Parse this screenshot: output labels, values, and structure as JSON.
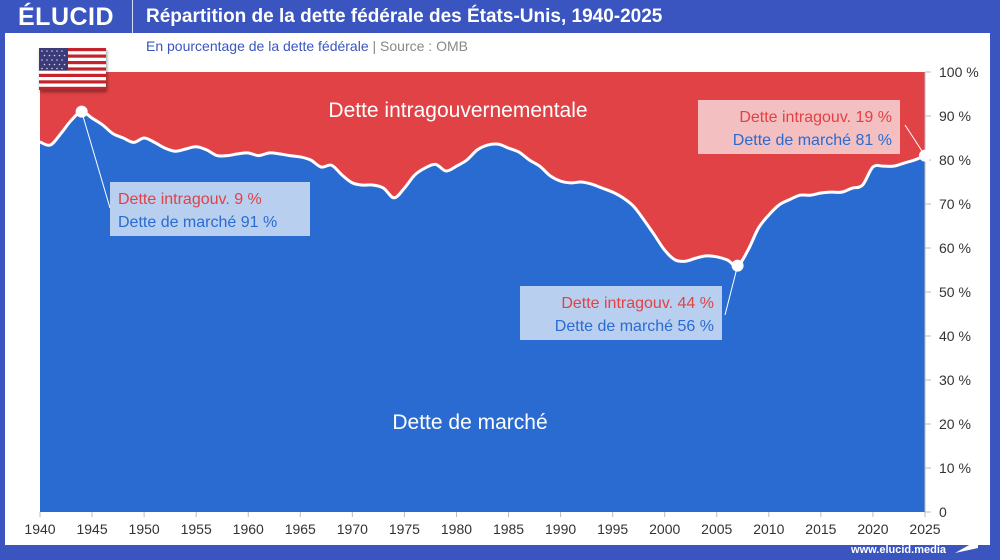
{
  "header": {
    "logo": "ÉLUCID",
    "title": "Répartition de la dette fédérale des États-Unis, 1940-2025"
  },
  "subtitle": {
    "text": "En pourcentage de la dette fédérale",
    "separator": "|",
    "source": "Source : OMB"
  },
  "footer": {
    "url": "www.elucid.media"
  },
  "colors": {
    "brand": "#3a55c0",
    "market": "#2a6bd1",
    "intragov": "#e04246",
    "annotation_red": "#e04246",
    "annotation_blue": "#2a6bd1"
  },
  "chart_data": {
    "type": "area",
    "title": "Répartition de la dette fédérale des États-Unis, 1940-2025",
    "xlim": [
      1940,
      2025
    ],
    "ylim": [
      0,
      100
    ],
    "x_ticks": [
      "1940",
      "1945",
      "1950",
      "1955",
      "1960",
      "1965",
      "1970",
      "1975",
      "1980",
      "1985",
      "1990",
      "1995",
      "2000",
      "2005",
      "2010",
      "2015",
      "2020",
      "2025"
    ],
    "y_ticks": [
      "0",
      "10 %",
      "20 %",
      "30 %",
      "40 %",
      "50 %",
      "60 %",
      "70 %",
      "80 %",
      "90 %",
      "100 %"
    ],
    "area_labels": {
      "intragov": "Dette intragouvernementale",
      "market": "Dette de marché"
    },
    "x": [
      1940,
      1941,
      1942,
      1943,
      1944,
      1945,
      1946,
      1947,
      1948,
      1949,
      1950,
      1951,
      1952,
      1953,
      1954,
      1955,
      1956,
      1957,
      1958,
      1959,
      1960,
      1961,
      1962,
      1963,
      1964,
      1965,
      1966,
      1967,
      1968,
      1969,
      1970,
      1971,
      1972,
      1973,
      1974,
      1975,
      1976,
      1977,
      1978,
      1979,
      1980,
      1981,
      1982,
      1983,
      1984,
      1985,
      1986,
      1987,
      1988,
      1989,
      1990,
      1991,
      1992,
      1993,
      1994,
      1995,
      1996,
      1997,
      1998,
      1999,
      2000,
      2001,
      2002,
      2003,
      2004,
      2005,
      2006,
      2007,
      2008,
      2009,
      2010,
      2011,
      2012,
      2013,
      2014,
      2015,
      2016,
      2017,
      2018,
      2019,
      2020,
      2021,
      2022,
      2023,
      2024,
      2025
    ],
    "market_share_pct": [
      84.1,
      83.4,
      86,
      89,
      91,
      89.5,
      88,
      86,
      85,
      84,
      85,
      84,
      82.7,
      82,
      82.5,
      83,
      82.3,
      81,
      81,
      81.4,
      81.6,
      81,
      81.6,
      81.4,
      81,
      80.7,
      80,
      78.4,
      78.8,
      76.6,
      74.8,
      74.3,
      74.3,
      73.6,
      71.4,
      73.6,
      76.6,
      78.2,
      79,
      77.5,
      78.6,
      80,
      82.3,
      83.4,
      83.6,
      82.7,
      81.8,
      80,
      78.6,
      76.4,
      75.2,
      74.8,
      75,
      74.5,
      73.6,
      72.7,
      71.4,
      69.5,
      66.4,
      63,
      59.5,
      57.3,
      57,
      57.7,
      58.2,
      58,
      57.3,
      56,
      59.5,
      64.5,
      67.5,
      69.8,
      71,
      72,
      72,
      72.5,
      72.7,
      72.7,
      73.6,
      74.3,
      78.4,
      78.6,
      78.6,
      79.3,
      80,
      81
    ],
    "annotations": [
      {
        "year": 1944,
        "intragov_label": "Dette intragouv. 9 %",
        "market_label": "Dette de marché 91 %",
        "market": 91
      },
      {
        "year": 2007,
        "intragov_label": "Dette intragouv. 44 %",
        "market_label": "Dette de marché 56 %",
        "market": 56
      },
      {
        "year": 2025,
        "intragov_label": "Dette intragouv. 19 %",
        "market_label": "Dette de marché 81 %",
        "market": 81
      }
    ]
  }
}
